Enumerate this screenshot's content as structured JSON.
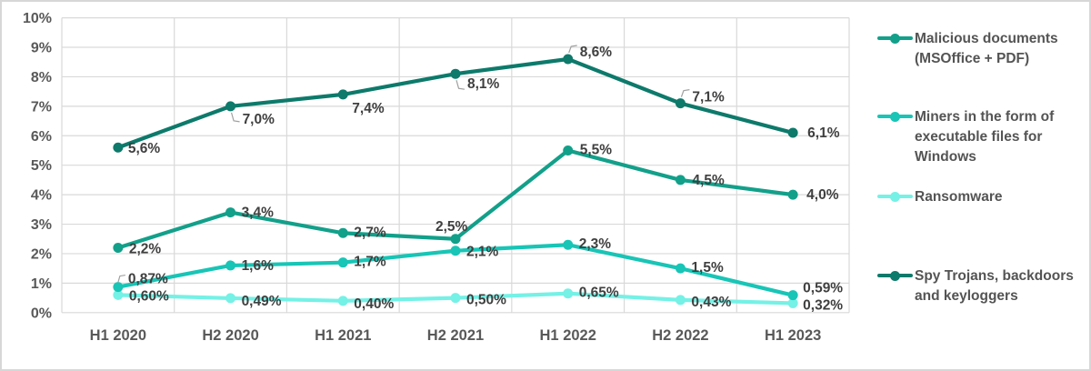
{
  "chart_data": {
    "type": "line",
    "categories": [
      "H1 2020",
      "H2 2020",
      "H1 2021",
      "H2 2021",
      "H1 2022",
      "H2 2022",
      "H1 2023"
    ],
    "series": [
      {
        "name": "Malicious documents (MSOffice + PDF)",
        "color": "#12A08A",
        "values": [
          2.2,
          3.4,
          2.7,
          2.5,
          5.5,
          4.5,
          4.0
        ],
        "labels": [
          "2,2%",
          "3,4%",
          "2,7%",
          "2,5%",
          "5,5%",
          "4,5%",
          "4,0%"
        ]
      },
      {
        "name": "Miners in the form of executable files for Windows",
        "color": "#18C5B6",
        "values": [
          0.87,
          1.6,
          1.7,
          2.1,
          2.3,
          1.5,
          0.59
        ],
        "labels": [
          "0,87%",
          "1,6%",
          "1,7%",
          "2,1%",
          "2,3%",
          "1,5%",
          "0,59%"
        ]
      },
      {
        "name": "Ransomware",
        "color": "#75F1E6",
        "values": [
          0.6,
          0.49,
          0.4,
          0.5,
          0.65,
          0.43,
          0.32
        ],
        "labels": [
          "0,60%",
          "0,49%",
          "0,40%",
          "0,50%",
          "0,65%",
          "0,43%",
          "0,32%"
        ]
      },
      {
        "name": "Spy Trojans, backdoors and keyloggers",
        "color": "#0D7A6B",
        "values": [
          5.6,
          7.0,
          7.4,
          8.1,
          8.6,
          7.1,
          6.1
        ],
        "labels": [
          "5,6%",
          "7,0%",
          "7,4%",
          "8,1%",
          "8,6%",
          "7,1%",
          "6,1%"
        ]
      }
    ],
    "y_ticks": [
      "0%",
      "1%",
      "2%",
      "3%",
      "4%",
      "5%",
      "6%",
      "7%",
      "8%",
      "9%",
      "10%"
    ],
    "ylim": [
      0,
      10
    ],
    "grid": true,
    "legend_position": "right",
    "colors": {
      "gridline": "#D9D9D9",
      "axis_text": "#595959",
      "data_label": "#3F3F3F",
      "leader_line": "#A0A0A0",
      "background": "#FFFFFF"
    }
  }
}
